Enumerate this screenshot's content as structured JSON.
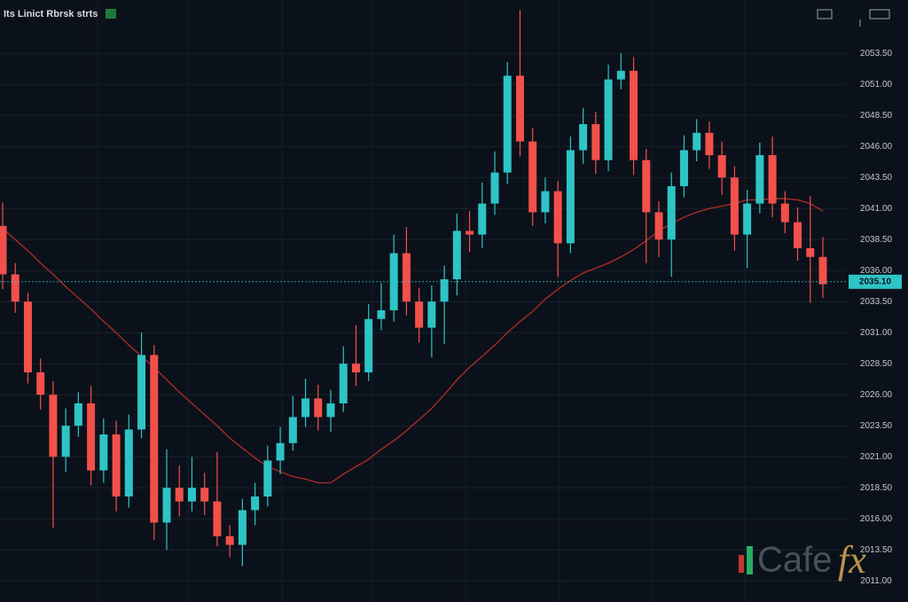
{
  "chart_data": {
    "type": "candlestick",
    "title": "Its Linict Rbrsk strts",
    "watermark": "Cafe",
    "watermark_accent": "fx",
    "up_color": "#2ec4c6",
    "down_color": "#f2504b",
    "grid": true,
    "ylim": [
      2009.3,
      2057.8
    ],
    "yticks": [
      {
        "value": 2053.5,
        "label": "2053.50"
      },
      {
        "value": 2051.0,
        "label": "2051.00"
      },
      {
        "value": 2048.5,
        "label": "2048.50"
      },
      {
        "value": 2046.0,
        "label": "2046.00"
      },
      {
        "value": 2043.5,
        "label": "2043.50"
      },
      {
        "value": 2041.0,
        "label": "2041.00"
      },
      {
        "value": 2038.5,
        "label": "2038.50"
      },
      {
        "value": 2036.0,
        "label": "2036.00"
      },
      {
        "value": 2033.5,
        "label": "2033.50"
      },
      {
        "value": 2031.0,
        "label": "2031.00"
      },
      {
        "value": 2028.5,
        "label": "2028.50"
      },
      {
        "value": 2026.0,
        "label": "2026.00"
      },
      {
        "value": 2023.5,
        "label": "2023.50"
      },
      {
        "value": 2021.0,
        "label": "2021.00"
      },
      {
        "value": 2018.5,
        "label": "2018.50"
      },
      {
        "value": 2016.0,
        "label": "2016.00"
      },
      {
        "value": 2013.5,
        "label": "2013.50"
      },
      {
        "value": 2011.0,
        "label": "2011.00"
      }
    ],
    "current_price": {
      "value": 2035.1,
      "label": "2035.10",
      "color": "#2ec4c6"
    },
    "candles": {
      "open": [
        2039.6,
        2035.7,
        2033.5,
        2027.8,
        2026.0,
        2021.0,
        2023.5,
        2025.3,
        2019.9,
        2022.8,
        2017.8,
        2023.2,
        2029.2,
        2015.7,
        2018.5,
        2017.4,
        2018.5,
        2017.4,
        2014.6,
        2013.9,
        2016.7,
        2017.8,
        2020.7,
        2022.1,
        2024.2,
        2025.7,
        2024.2,
        2025.3,
        2028.5,
        2027.8,
        2032.1,
        2032.8,
        2037.4,
        2033.5,
        2031.4,
        2033.5,
        2035.3,
        2039.2,
        2038.9,
        2041.4,
        2043.9,
        2051.7,
        2046.4,
        2040.7,
        2042.4,
        2038.2,
        2045.7,
        2047.8,
        2044.9,
        2051.4,
        2052.1,
        2044.9,
        2040.7,
        2038.5,
        2042.8,
        2045.7,
        2047.1,
        2045.3,
        2043.5,
        2038.9,
        2041.4,
        2045.3,
        2041.4,
        2039.9,
        2037.8,
        2037.1
      ],
      "high": [
        2041.5,
        2036.6,
        2034.2,
        2028.9,
        2027.1,
        2024.9,
        2026.2,
        2026.7,
        2024.1,
        2023.9,
        2024.4,
        2031.0,
        2030.0,
        2021.6,
        2020.3,
        2021.0,
        2019.7,
        2021.4,
        2015.5,
        2017.6,
        2018.9,
        2021.9,
        2023.4,
        2025.9,
        2027.3,
        2026.8,
        2026.4,
        2029.9,
        2031.6,
        2033.3,
        2035.0,
        2038.9,
        2039.5,
        2034.6,
        2034.8,
        2036.4,
        2040.6,
        2040.8,
        2043.1,
        2045.6,
        2052.8,
        2057.0,
        2047.5,
        2043.5,
        2043.2,
        2046.8,
        2049.1,
        2048.8,
        2052.6,
        2053.5,
        2053.2,
        2045.8,
        2041.6,
        2043.9,
        2046.9,
        2048.2,
        2048.0,
        2046.4,
        2044.4,
        2042.5,
        2046.3,
        2046.8,
        2042.4,
        2041.1,
        2042.0,
        2038.7
      ],
      "low": [
        2034.5,
        2032.6,
        2026.9,
        2024.8,
        2015.3,
        2019.8,
        2022.6,
        2018.7,
        2018.9,
        2016.6,
        2016.9,
        2022.5,
        2014.3,
        2013.5,
        2016.2,
        2016.6,
        2016.3,
        2013.8,
        2012.9,
        2012.2,
        2015.5,
        2017.0,
        2019.6,
        2021.5,
        2023.4,
        2023.1,
        2023.0,
        2024.6,
        2026.7,
        2027.1,
        2031.2,
        2031.9,
        2032.4,
        2030.2,
        2029.0,
        2030.1,
        2034.0,
        2037.5,
        2037.8,
        2040.5,
        2043.0,
        2045.2,
        2039.6,
        2039.8,
        2035.5,
        2037.4,
        2044.6,
        2043.8,
        2044.0,
        2050.6,
        2043.7,
        2036.6,
        2037.1,
        2035.5,
        2041.9,
        2044.8,
        2044.2,
        2042.1,
        2037.6,
        2036.2,
        2040.6,
        2040.3,
        2039.0,
        2036.8,
        2033.4,
        2033.8
      ],
      "close": [
        2035.7,
        2033.5,
        2027.8,
        2026.0,
        2021.0,
        2023.5,
        2025.3,
        2019.9,
        2022.8,
        2017.8,
        2023.2,
        2029.2,
        2015.7,
        2018.5,
        2017.4,
        2018.5,
        2017.4,
        2014.6,
        2013.9,
        2016.7,
        2017.8,
        2020.7,
        2022.1,
        2024.2,
        2025.7,
        2024.2,
        2025.3,
        2028.5,
        2027.8,
        2032.1,
        2032.8,
        2037.4,
        2033.5,
        2031.4,
        2033.5,
        2035.3,
        2039.2,
        2038.9,
        2041.4,
        2043.9,
        2051.7,
        2046.4,
        2040.7,
        2042.4,
        2038.2,
        2045.7,
        2047.8,
        2044.9,
        2051.4,
        2052.1,
        2044.9,
        2040.7,
        2038.5,
        2042.8,
        2045.7,
        2047.1,
        2045.3,
        2043.5,
        2038.9,
        2041.4,
        2045.3,
        2041.4,
        2039.9,
        2037.8,
        2037.1,
        2034.9
      ]
    },
    "moving_average": {
      "color": "#a82a2a",
      "values": [
        2039.4,
        2038.5,
        2037.6,
        2036.6,
        2035.7,
        2034.7,
        2033.8,
        2032.9,
        2031.9,
        2031.0,
        2030.0,
        2029.1,
        2028.2,
        2027.2,
        2026.2,
        2025.3,
        2024.4,
        2023.5,
        2022.5,
        2021.7,
        2020.9,
        2020.2,
        2019.8,
        2019.4,
        2019.2,
        2018.9,
        2018.9,
        2019.6,
        2020.2,
        2020.8,
        2021.6,
        2022.3,
        2023.1,
        2024.0,
        2024.9,
        2026.0,
        2027.2,
        2028.2,
        2029.1,
        2030.0,
        2031.0,
        2031.9,
        2032.7,
        2033.7,
        2034.5,
        2035.2,
        2035.8,
        2036.2,
        2036.6,
        2037.1,
        2037.7,
        2038.4,
        2039.2,
        2039.8,
        2040.3,
        2040.7,
        2041.0,
        2041.2,
        2041.4,
        2041.7,
        2041.7,
        2041.8,
        2041.8,
        2041.7,
        2041.4,
        2040.8
      ]
    }
  }
}
